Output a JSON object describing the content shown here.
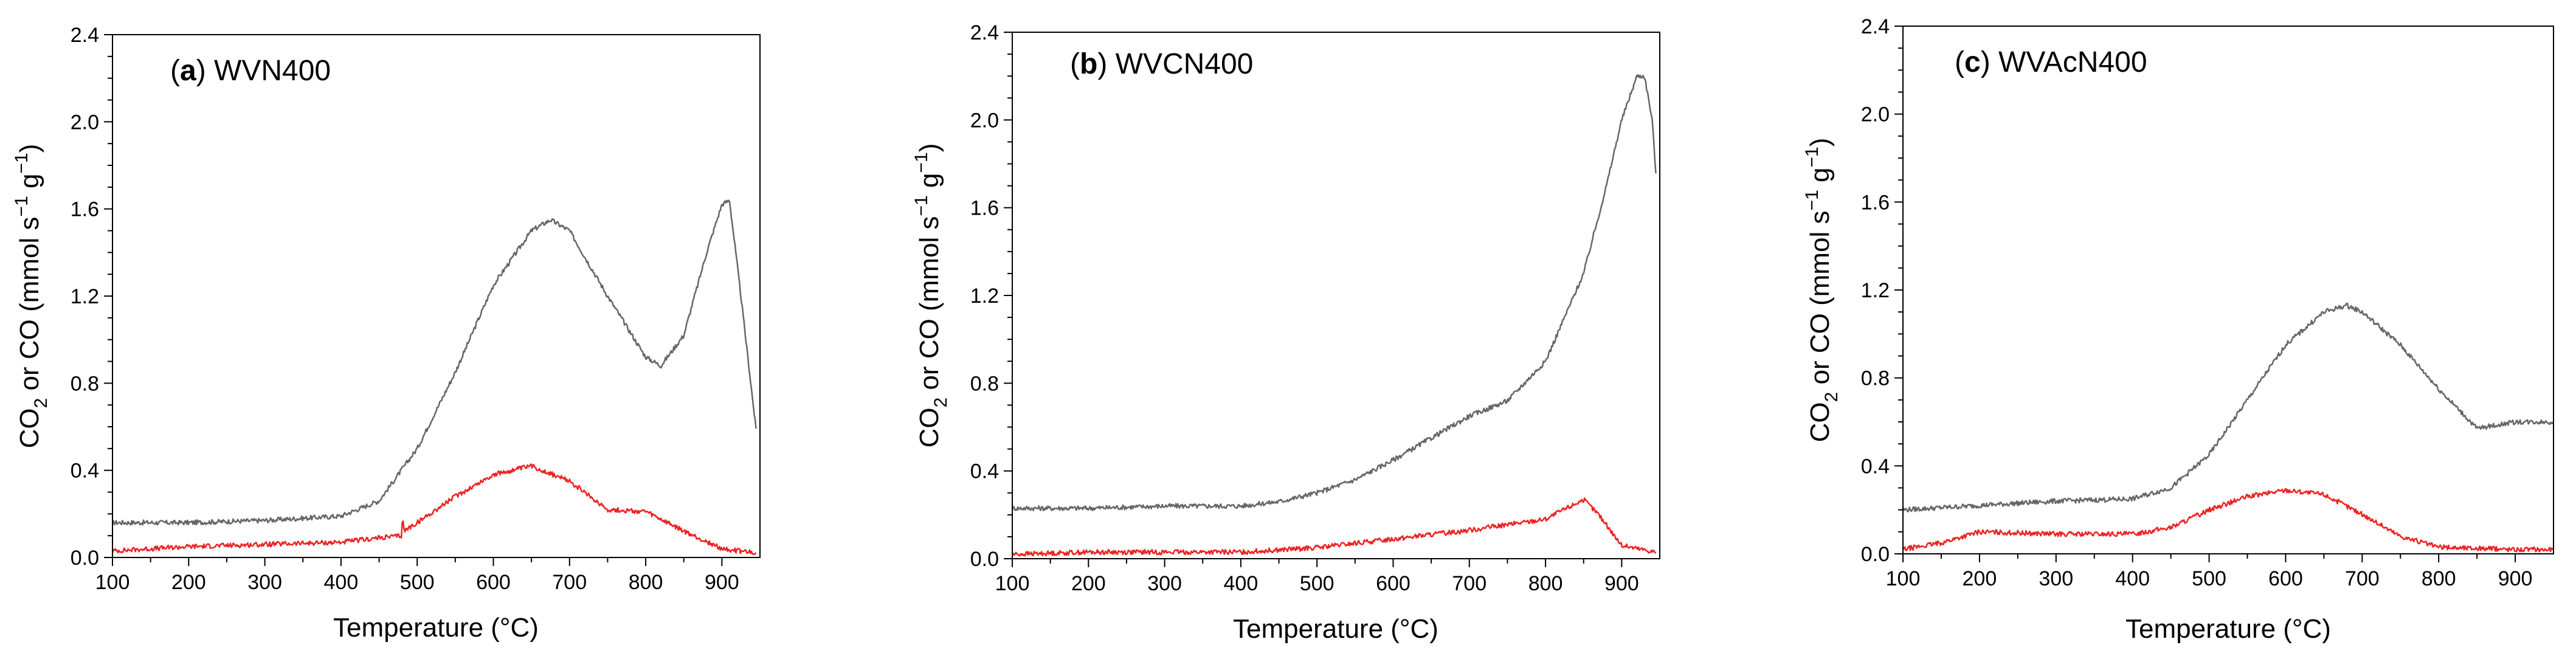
{
  "chart_data": [
    {
      "type": "line",
      "panel_letter": "a",
      "panel_name": "WVN400",
      "xlabel": "Temperature (°C)",
      "ylabel_parts": {
        "co": "CO",
        "sub2": "2",
        "mid": " or CO (mmol s",
        "sup1": "−1",
        "g": " g",
        "sup2": "−1",
        "close": ")"
      },
      "xlim": [
        100,
        950
      ],
      "ylim": [
        0,
        2.4
      ],
      "x_ticks": [
        100,
        200,
        300,
        400,
        500,
        600,
        700,
        800,
        900
      ],
      "y_ticks": [
        0.0,
        0.4,
        0.8,
        1.2,
        1.6,
        2.0,
        2.4
      ],
      "y_tick_labels": [
        "0.0",
        "0.4",
        "0.8",
        "1.2",
        "1.6",
        "2.0",
        "2.4"
      ],
      "series": [
        {
          "name": "CO",
          "color": "#666666",
          "x": [
            100,
            200,
            300,
            400,
            450,
            500,
            550,
            600,
            650,
            675,
            700,
            750,
            800,
            820,
            850,
            880,
            900,
            910,
            925,
            945
          ],
          "y": [
            0.16,
            0.16,
            0.17,
            0.19,
            0.26,
            0.5,
            0.85,
            1.25,
            1.5,
            1.55,
            1.5,
            1.2,
            0.92,
            0.88,
            1.02,
            1.4,
            1.62,
            1.64,
            1.2,
            0.58
          ]
        },
        {
          "name": "CO2",
          "color": "#ee2222",
          "x": [
            100,
            200,
            300,
            400,
            450,
            480,
            481,
            482,
            500,
            550,
            600,
            650,
            700,
            750,
            800,
            850,
            900,
            945
          ],
          "y": [
            0.03,
            0.05,
            0.06,
            0.07,
            0.09,
            0.1,
            0.24,
            0.12,
            0.16,
            0.28,
            0.38,
            0.42,
            0.35,
            0.22,
            0.21,
            0.12,
            0.04,
            0.02
          ]
        }
      ]
    },
    {
      "type": "line",
      "panel_letter": "b",
      "panel_name": "WVCN400",
      "xlabel": "Temperature (°C)",
      "ylabel_parts": {
        "co": "CO",
        "sub2": "2",
        "mid": " or CO (mmol s",
        "sup1": "−1",
        "g": " g",
        "sup2": "−1",
        "close": ")"
      },
      "xlim": [
        100,
        950
      ],
      "ylim": [
        0,
        2.4
      ],
      "x_ticks": [
        100,
        200,
        300,
        400,
        500,
        600,
        700,
        800,
        900
      ],
      "y_ticks": [
        0.0,
        0.4,
        0.8,
        1.2,
        1.6,
        2.0,
        2.4
      ],
      "y_tick_labels": [
        "0.0",
        "0.4",
        "0.8",
        "1.2",
        "1.6",
        "2.0",
        "2.4"
      ],
      "series": [
        {
          "name": "CO",
          "color": "#666666",
          "x": [
            100,
            200,
            300,
            400,
            450,
            500,
            550,
            600,
            650,
            700,
            750,
            800,
            850,
            880,
            900,
            920,
            930,
            940,
            945
          ],
          "y": [
            0.23,
            0.23,
            0.24,
            0.24,
            0.26,
            0.3,
            0.36,
            0.45,
            0.55,
            0.65,
            0.72,
            0.9,
            1.3,
            1.7,
            2.0,
            2.2,
            2.2,
            2.0,
            1.75
          ]
        },
        {
          "name": "CO2",
          "color": "#ee2222",
          "x": [
            100,
            200,
            300,
            400,
            500,
            600,
            700,
            800,
            850,
            870,
            900,
            945
          ],
          "y": [
            0.02,
            0.03,
            0.03,
            0.03,
            0.05,
            0.09,
            0.13,
            0.18,
            0.27,
            0.2,
            0.06,
            0.03
          ]
        }
      ]
    },
    {
      "type": "line",
      "panel_letter": "c",
      "panel_name": "WVAcN400",
      "xlabel": "Temperature (°C)",
      "ylabel_parts": {
        "co": "CO",
        "sub2": "2",
        "mid": " or CO (mmol s",
        "sup1": "−1",
        "g": " g",
        "sup2": "−1",
        "close": ")"
      },
      "xlim": [
        100,
        950
      ],
      "ylim": [
        0,
        2.4
      ],
      "x_ticks": [
        100,
        200,
        300,
        400,
        500,
        600,
        700,
        800,
        900
      ],
      "y_ticks": [
        0.0,
        0.4,
        0.8,
        1.2,
        1.6,
        2.0,
        2.4
      ],
      "y_tick_labels": [
        "0.0",
        "0.4",
        "0.8",
        "1.2",
        "1.6",
        "2.0",
        "2.4"
      ],
      "series": [
        {
          "name": "CO",
          "color": "#666666",
          "x": [
            100,
            200,
            300,
            400,
            450,
            500,
            550,
            600,
            650,
            680,
            700,
            750,
            800,
            850,
            900,
            950
          ],
          "y": [
            0.2,
            0.22,
            0.24,
            0.25,
            0.3,
            0.45,
            0.7,
            0.95,
            1.1,
            1.13,
            1.1,
            0.95,
            0.75,
            0.57,
            0.6,
            0.6
          ]
        },
        {
          "name": "CO2",
          "color": "#ee2222",
          "x": [
            100,
            150,
            200,
            300,
            400,
            450,
            500,
            550,
            600,
            650,
            700,
            750,
            800,
            900,
            950
          ],
          "y": [
            0.02,
            0.05,
            0.1,
            0.09,
            0.09,
            0.12,
            0.2,
            0.26,
            0.29,
            0.27,
            0.18,
            0.08,
            0.03,
            0.02,
            0.02
          ]
        }
      ]
    }
  ]
}
